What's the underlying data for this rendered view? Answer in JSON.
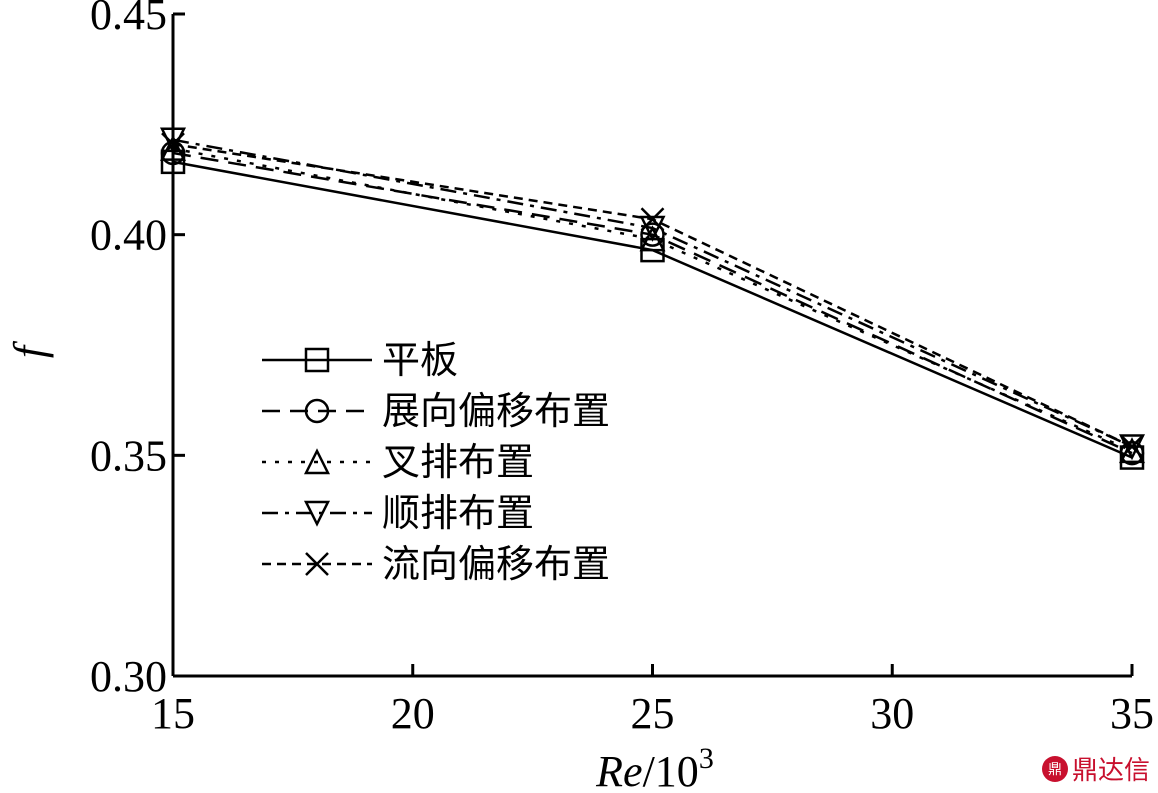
{
  "chart_data": {
    "type": "line",
    "x": [
      15,
      25,
      35
    ],
    "xlim": [
      15,
      35
    ],
    "ylim": [
      0.3,
      0.45
    ],
    "x_ticks": [
      "15",
      "20",
      "25",
      "30",
      "35"
    ],
    "y_ticks": [
      "0.30",
      "0.35",
      "0.40",
      "0.45"
    ],
    "ylabel": "f",
    "xlabel_main": "Re",
    "xlabel_suffix": "/10",
    "xlabel_exp": "3",
    "legend_position": "center-left",
    "grid": false,
    "series": [
      {
        "name": "平板",
        "values": [
          0.4165,
          0.3965,
          0.3495
        ],
        "marker": "square",
        "dash": "solid"
      },
      {
        "name": "展向偏移布置",
        "values": [
          0.4185,
          0.4,
          0.3505
        ],
        "marker": "circle",
        "dash": "dashed"
      },
      {
        "name": "叉排布置",
        "values": [
          0.4195,
          0.399,
          0.351
        ],
        "marker": "triangle-up",
        "dash": "dotted"
      },
      {
        "name": "顺排布置",
        "values": [
          0.4215,
          0.4015,
          0.352
        ],
        "marker": "triangle-down",
        "dash": "dashdot"
      },
      {
        "name": "流向偏移布置",
        "values": [
          0.4205,
          0.4035,
          0.352
        ],
        "marker": "x",
        "dash": "shortdash"
      }
    ]
  },
  "watermark": {
    "logo": "鼎",
    "text": "鼎达信"
  }
}
